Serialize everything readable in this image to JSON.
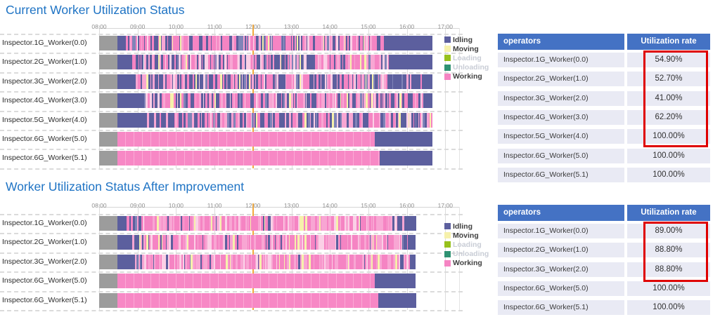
{
  "colors": {
    "idling": "#5C5F9E",
    "moving": "#F6F1AB",
    "loading": "#97C11C",
    "unloading": "#2E9272",
    "working": "#F584C3",
    "offline": "#9C9C9C",
    "title_blue": "#1E73C4",
    "table_header_blue": "#4472C4",
    "highlight_red": "#DF0000",
    "current_time_marker": "#F3A93C"
  },
  "chart_data": [
    {
      "type": "gantt",
      "title": "Current Worker Utilization Status",
      "time_axis": {
        "start": "08:00",
        "end": "17:00",
        "ticks": [
          "08:00",
          "09:00",
          "10:00",
          "11:00",
          "12:00",
          "13:00",
          "14:00",
          "15:00",
          "16:00",
          "17:00"
        ],
        "current_time": "12:00"
      },
      "legend": [
        {
          "label": "Idling",
          "state": "idling",
          "enabled": true
        },
        {
          "label": "Moving",
          "state": "moving",
          "enabled": true
        },
        {
          "label": "Loading",
          "state": "loading",
          "enabled": false
        },
        {
          "label": "Unloading",
          "state": "unloading",
          "enabled": false
        },
        {
          "label": "Working",
          "state": "working",
          "enabled": true
        }
      ],
      "rows": [
        {
          "label": "Inspector.1G_Worker(0.0)",
          "segments": [
            {
              "from": "08:00",
              "to": "08:28",
              "state": "offline"
            },
            {
              "from": "08:28",
              "to": "08:40",
              "state": "idling"
            },
            {
              "from": "08:40",
              "to": "09:00",
              "state": "mixed",
              "mix": {
                "working": 0.35,
                "idling": 0.62,
                "moving": 0.03
              }
            },
            {
              "from": "09:00",
              "to": "15:25",
              "state": "mixed",
              "mix": {
                "working": 0.64,
                "idling": 0.32,
                "moving": 0.04
              }
            },
            {
              "from": "15:25",
              "to": "16:40",
              "state": "idling"
            }
          ]
        },
        {
          "label": "Inspector.2G_Worker(1.0)",
          "segments": [
            {
              "from": "08:00",
              "to": "08:28",
              "state": "offline"
            },
            {
              "from": "08:28",
              "to": "08:52",
              "state": "idling"
            },
            {
              "from": "08:52",
              "to": "09:10",
              "state": "mixed",
              "mix": {
                "working": 0.3,
                "idling": 0.67,
                "moving": 0.03
              }
            },
            {
              "from": "09:10",
              "to": "15:35",
              "state": "mixed",
              "mix": {
                "working": 0.58,
                "idling": 0.38,
                "moving": 0.04
              }
            },
            {
              "from": "15:35",
              "to": "16:40",
              "state": "idling"
            }
          ]
        },
        {
          "label": "Inspector.3G_Worker(2.0)",
          "segments": [
            {
              "from": "08:00",
              "to": "08:28",
              "state": "offline"
            },
            {
              "from": "08:28",
              "to": "08:56",
              "state": "idling"
            },
            {
              "from": "08:56",
              "to": "15:30",
              "state": "mixed",
              "mix": {
                "working": 0.5,
                "idling": 0.47,
                "moving": 0.03
              }
            },
            {
              "from": "15:30",
              "to": "16:40",
              "state": "mixed",
              "mix": {
                "working": 0.15,
                "idling": 0.85,
                "moving": 0.0
              }
            }
          ]
        },
        {
          "label": "Inspector.4G_Worker(3.0)",
          "segments": [
            {
              "from": "08:00",
              "to": "08:28",
              "state": "offline"
            },
            {
              "from": "08:28",
              "to": "09:05",
              "state": "idling"
            },
            {
              "from": "09:05",
              "to": "16:30",
              "state": "mixed",
              "mix": {
                "working": 0.62,
                "idling": 0.35,
                "moving": 0.03
              }
            },
            {
              "from": "16:30",
              "to": "16:40",
              "state": "mixed",
              "mix": {
                "working": 0.2,
                "idling": 0.8,
                "moving": 0.0
              }
            }
          ]
        },
        {
          "label": "Inspector.5G_Worker(4.0)",
          "segments": [
            {
              "from": "08:00",
              "to": "08:28",
              "state": "offline"
            },
            {
              "from": "08:28",
              "to": "09:14",
              "state": "idling"
            },
            {
              "from": "09:14",
              "to": "16:40",
              "state": "mixed",
              "mix": {
                "working": 0.48,
                "idling": 0.49,
                "moving": 0.03
              }
            }
          ]
        },
        {
          "label": "Inspector.6G_Worker(5.0)",
          "segments": [
            {
              "from": "08:00",
              "to": "08:28",
              "state": "offline"
            },
            {
              "from": "08:28",
              "to": "15:10",
              "state": "working"
            },
            {
              "from": "15:10",
              "to": "16:40",
              "state": "idling"
            }
          ]
        },
        {
          "label": "Inspector.6G_Worker(5.1)",
          "segments": [
            {
              "from": "08:00",
              "to": "08:28",
              "state": "offline"
            },
            {
              "from": "08:28",
              "to": "15:18",
              "state": "working"
            },
            {
              "from": "15:18",
              "to": "16:40",
              "state": "idling"
            }
          ]
        }
      ],
      "table": {
        "col_headers": [
          "operators",
          "Utilization rate"
        ],
        "rows": [
          {
            "operator": "Inspector.1G_Worker(0.0)",
            "rate": "54.90%"
          },
          {
            "operator": "Inspector.2G_Worker(1.0)",
            "rate": "52.70%"
          },
          {
            "operator": "Inspector.3G_Worker(2.0)",
            "rate": "41.00%"
          },
          {
            "operator": "Inspector.4G_Worker(3.0)",
            "rate": "62.20%"
          },
          {
            "operator": "Inspector.5G_Worker(4.0)",
            "rate": "100.00%"
          },
          {
            "operator": "Inspector.6G_Worker(5.0)",
            "rate": "100.00%"
          },
          {
            "operator": "Inspector.6G_Worker(5.1)",
            "rate": "100.00%"
          }
        ],
        "highlighted_rate_rows": [
          0,
          1,
          2,
          3,
          4
        ]
      }
    },
    {
      "type": "gantt",
      "title": "Worker Utilization Status After Improvement",
      "time_axis": {
        "start": "08:00",
        "end": "17:00",
        "ticks": [
          "08:00",
          "09:00",
          "10:00",
          "11:00",
          "12:00",
          "13:00",
          "14:00",
          "15:00",
          "16:00",
          "17:00"
        ],
        "current_time": "12:00"
      },
      "legend": [
        {
          "label": "Idling",
          "state": "idling",
          "enabled": true
        },
        {
          "label": "Moving",
          "state": "moving",
          "enabled": true
        },
        {
          "label": "Loading",
          "state": "loading",
          "enabled": false
        },
        {
          "label": "Unloading",
          "state": "unloading",
          "enabled": false
        },
        {
          "label": "Working",
          "state": "working",
          "enabled": true
        }
      ],
      "rows": [
        {
          "label": "Inspector.1G_Worker(0.0)",
          "segments": [
            {
              "from": "08:00",
              "to": "08:28",
              "state": "offline"
            },
            {
              "from": "08:28",
              "to": "08:40",
              "state": "idling"
            },
            {
              "from": "08:40",
              "to": "09:10",
              "state": "mixed",
              "mix": {
                "working": 0.5,
                "idling": 0.45,
                "moving": 0.05
              }
            },
            {
              "from": "09:10",
              "to": "15:45",
              "state": "mixed",
              "mix": {
                "working": 0.85,
                "idling": 0.08,
                "moving": 0.07
              }
            },
            {
              "from": "15:45",
              "to": "16:00",
              "state": "mixed",
              "mix": {
                "working": 0.4,
                "idling": 0.58,
                "moving": 0.02
              }
            },
            {
              "from": "16:00",
              "to": "16:14",
              "state": "idling"
            }
          ]
        },
        {
          "label": "Inspector.2G_Worker(1.0)",
          "segments": [
            {
              "from": "08:00",
              "to": "08:28",
              "state": "offline"
            },
            {
              "from": "08:28",
              "to": "08:52",
              "state": "idling"
            },
            {
              "from": "08:52",
              "to": "09:20",
              "state": "mixed",
              "mix": {
                "working": 0.55,
                "idling": 0.4,
                "moving": 0.05
              }
            },
            {
              "from": "09:20",
              "to": "15:50",
              "state": "mixed",
              "mix": {
                "working": 0.86,
                "idling": 0.07,
                "moving": 0.07
              }
            },
            {
              "from": "15:50",
              "to": "16:02",
              "state": "mixed",
              "mix": {
                "working": 0.35,
                "idling": 0.63,
                "moving": 0.02
              }
            },
            {
              "from": "16:02",
              "to": "16:14",
              "state": "idling"
            }
          ]
        },
        {
          "label": "Inspector.3G_Worker(2.0)",
          "segments": [
            {
              "from": "08:00",
              "to": "08:28",
              "state": "offline"
            },
            {
              "from": "08:28",
              "to": "08:56",
              "state": "idling"
            },
            {
              "from": "08:56",
              "to": "09:15",
              "state": "mixed",
              "mix": {
                "working": 0.5,
                "idling": 0.45,
                "moving": 0.05
              }
            },
            {
              "from": "09:15",
              "to": "15:50",
              "state": "mixed",
              "mix": {
                "working": 0.87,
                "idling": 0.06,
                "moving": 0.07
              }
            },
            {
              "from": "15:50",
              "to": "16:05",
              "state": "mixed",
              "mix": {
                "working": 0.4,
                "idling": 0.58,
                "moving": 0.02
              }
            },
            {
              "from": "16:05",
              "to": "16:14",
              "state": "idling"
            }
          ]
        },
        {
          "label": "Inspector.6G_Worker(5.0)",
          "segments": [
            {
              "from": "08:00",
              "to": "08:28",
              "state": "offline"
            },
            {
              "from": "08:28",
              "to": "15:10",
              "state": "working"
            },
            {
              "from": "15:10",
              "to": "16:14",
              "state": "idling"
            }
          ]
        },
        {
          "label": "Inspector.6G_Worker(5.1)",
          "segments": [
            {
              "from": "08:00",
              "to": "08:28",
              "state": "offline"
            },
            {
              "from": "08:28",
              "to": "15:15",
              "state": "working"
            },
            {
              "from": "15:15",
              "to": "16:14",
              "state": "idling"
            }
          ]
        }
      ],
      "table": {
        "col_headers": [
          "operators",
          "Utilization rate"
        ],
        "rows": [
          {
            "operator": "Inspector.1G_Worker(0.0)",
            "rate": "89.00%"
          },
          {
            "operator": "Inspector.2G_Worker(1.0)",
            "rate": "88.80%"
          },
          {
            "operator": "Inspector.3G_Worker(2.0)",
            "rate": "88.80%"
          },
          {
            "operator": "Inspector.6G_Worker(5.0)",
            "rate": "100.00%"
          },
          {
            "operator": "Inspector.6G_Worker(5.1)",
            "rate": "100.00%"
          }
        ],
        "highlighted_rate_rows": [
          0,
          1,
          2
        ]
      }
    }
  ]
}
